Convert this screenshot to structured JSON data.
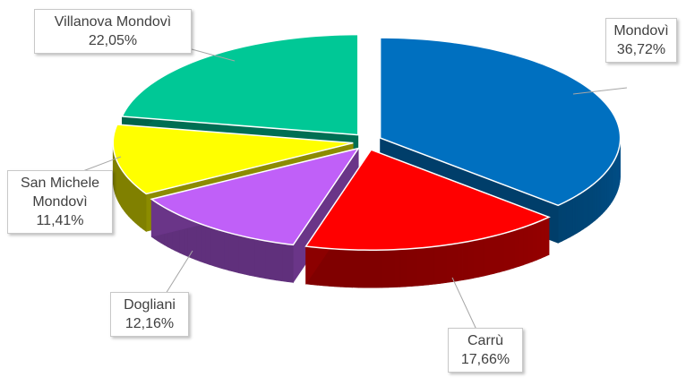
{
  "chart_data": {
    "type": "pie",
    "categories": [
      "Mondovì",
      "Carrù",
      "Dogliani",
      "San Michele Mondovì",
      "Villanova Mondovì"
    ],
    "values": [
      36.72,
      17.66,
      12.16,
      11.41,
      22.05
    ],
    "value_labels": [
      "36,72%",
      "17,66%",
      "12,16%",
      "11,41%",
      "22,05%"
    ],
    "colors": [
      "#0070c0",
      "#ff0000",
      "#c060f8",
      "#ffff00",
      "#00c896"
    ]
  }
}
